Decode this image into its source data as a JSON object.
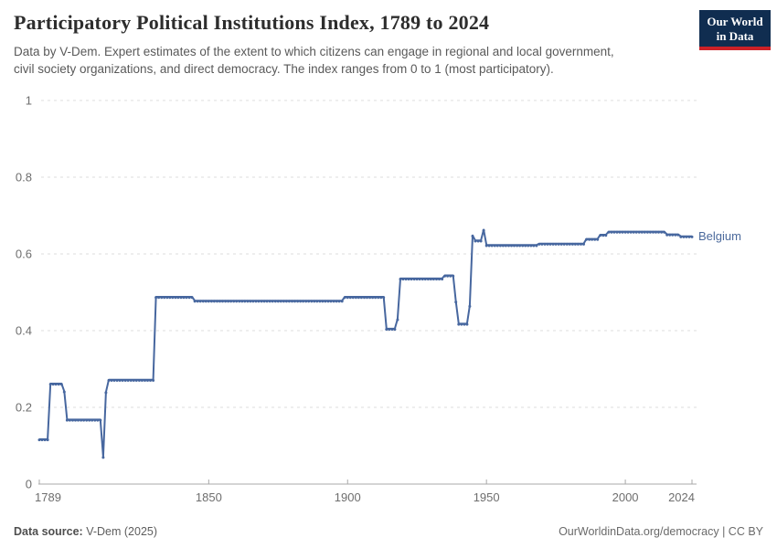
{
  "header": {
    "title": "Participatory Political Institutions Index, 1789 to 2024",
    "subtitle_line1": "Data by V-Dem. Expert estimates of the extent to which citizens can engage in regional and local government,",
    "subtitle_line2": "civil society organizations, and direct democracy. The index ranges from 0 to 1 (most participatory).",
    "logo": {
      "line1": "Our World",
      "line2": "in Data"
    }
  },
  "footer": {
    "source_label": "Data source:",
    "source_value": "V-Dem (2025)",
    "link": "OurWorldinData.org/democracy",
    "separator": " | ",
    "license": "CC BY"
  },
  "colors": {
    "line": "#47679f",
    "entity_label": "#4c6a9c",
    "grid": "#dedede",
    "axis": "#a8a8a8",
    "tick_label": "#6e6e6e",
    "logo_bg": "#102d50",
    "logo_red": "#cc2127",
    "title_text": "#2d2d2d",
    "subtitle_text": "#595959"
  },
  "chart_data": {
    "type": "line",
    "title": "Participatory Political Institutions Index, 1789 to 2024",
    "xlabel": "",
    "ylabel": "",
    "x_range": [
      1789,
      2024
    ],
    "y_range": [
      0,
      1
    ],
    "xticks": [
      1789,
      1850,
      1900,
      1950,
      2000,
      2024
    ],
    "yticks": [
      0,
      0.2,
      0.4,
      0.6,
      0.8,
      1
    ],
    "grid": "horizontal-dashed",
    "legend_position": "end-of-line-label",
    "series": [
      {
        "name": "Belgium",
        "color": "#47679f",
        "segments_year_start_end_value": [
          [
            1789,
            1792,
            0.117
          ],
          [
            1793,
            1797,
            0.262
          ],
          [
            1798,
            1798,
            0.242
          ],
          [
            1799,
            1811,
            0.168
          ],
          [
            1812,
            1812,
            0.071
          ],
          [
            1813,
            1813,
            0.24
          ],
          [
            1814,
            1830,
            0.272
          ],
          [
            1831,
            1844,
            0.488
          ],
          [
            1845,
            1898,
            0.478
          ],
          [
            1899,
            1913,
            0.488
          ],
          [
            1914,
            1917,
            0.405
          ],
          [
            1918,
            1918,
            0.43
          ],
          [
            1919,
            1934,
            0.536
          ],
          [
            1935,
            1938,
            0.544
          ],
          [
            1939,
            1939,
            0.476
          ],
          [
            1940,
            1943,
            0.418
          ],
          [
            1944,
            1944,
            0.465
          ],
          [
            1945,
            1945,
            0.648
          ],
          [
            1946,
            1948,
            0.635
          ],
          [
            1949,
            1949,
            0.663
          ],
          [
            1950,
            1968,
            0.623
          ],
          [
            1969,
            1985,
            0.627
          ],
          [
            1986,
            1990,
            0.639
          ],
          [
            1991,
            1993,
            0.65
          ],
          [
            1994,
            2014,
            0.658
          ],
          [
            2015,
            2019,
            0.651
          ],
          [
            2020,
            2024,
            0.646
          ]
        ]
      }
    ]
  }
}
